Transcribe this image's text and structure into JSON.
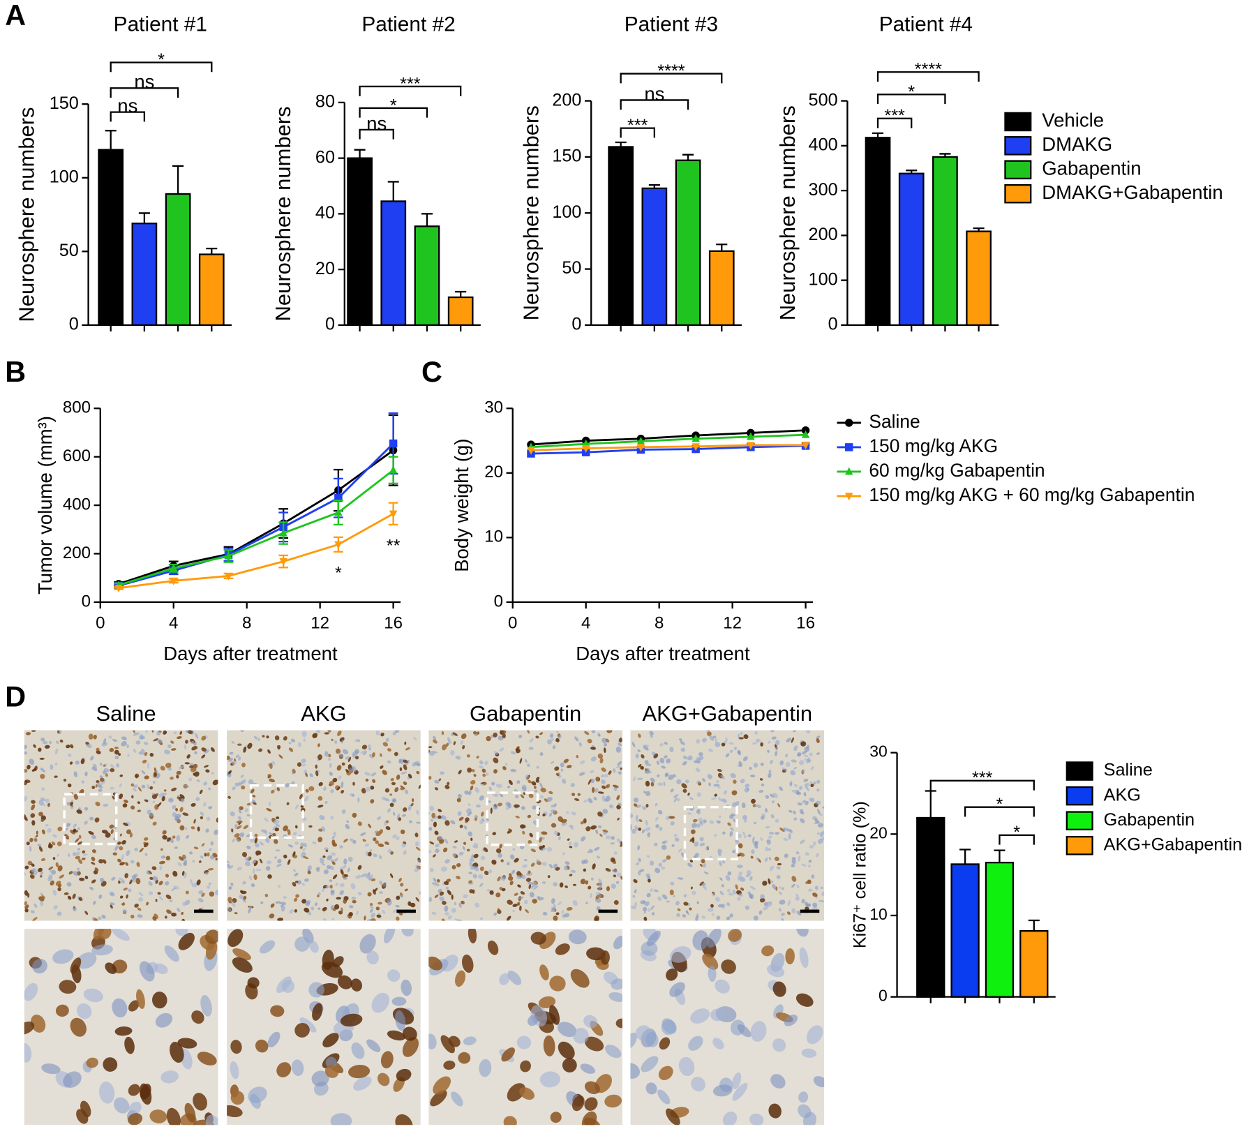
{
  "panels": [
    "A",
    "B",
    "C",
    "D"
  ],
  "micrographs": {
    "labels": [
      "Saline",
      "AKG",
      "Gabapentin",
      "AKG+Gabapentin"
    ]
  },
  "chart_data": [
    {
      "type": "bar",
      "title": "Patient #1",
      "ylabel": "Neurosphere numbers",
      "values": [
        119,
        69,
        89,
        48
      ],
      "errors": [
        13,
        7,
        19,
        4
      ],
      "colors": [
        "#000000",
        "#1f3ff2",
        "#1fc41f",
        "#ff9a0a"
      ],
      "ylim": [
        0,
        150
      ],
      "yticks": [
        0,
        50,
        100,
        150
      ],
      "annotations": [
        "ns",
        "ns",
        "*"
      ]
    },
    {
      "type": "bar",
      "title": "Patient #2",
      "ylabel": "Neurosphere numbers",
      "values": [
        60,
        44.5,
        35.5,
        10
      ],
      "errors": [
        3,
        7,
        4.5,
        2
      ],
      "colors": [
        "#000000",
        "#1f3ff2",
        "#1fc41f",
        "#ff9a0a"
      ],
      "ylim": [
        0,
        80
      ],
      "yticks": [
        0,
        20,
        40,
        60,
        80
      ],
      "annotations": [
        "ns",
        "*",
        "***"
      ]
    },
    {
      "type": "bar",
      "title": "Patient #3",
      "ylabel": "Neurosphere numbers",
      "values": [
        159,
        122,
        147,
        66
      ],
      "errors": [
        4,
        3,
        5,
        6
      ],
      "colors": [
        "#000000",
        "#1f3ff2",
        "#1fc41f",
        "#ff9a0a"
      ],
      "ylim": [
        0,
        200
      ],
      "yticks": [
        0,
        50,
        100,
        150,
        200
      ],
      "annotations": [
        "***",
        "ns",
        "****"
      ]
    },
    {
      "type": "bar",
      "title": "Patient #4",
      "ylabel": "Neurosphere numbers",
      "values": [
        418,
        338,
        375,
        209
      ],
      "errors": [
        10,
        7,
        7,
        7
      ],
      "colors": [
        "#000000",
        "#1f3ff2",
        "#1fc41f",
        "#ff9a0a"
      ],
      "ylim": [
        0,
        500
      ],
      "yticks": [
        0,
        100,
        200,
        300,
        400,
        500
      ],
      "annotations": [
        "***",
        "*",
        "****"
      ],
      "legend": [
        "Vehicle",
        "DMAKG",
        "Gabapentin",
        "DMAKG+Gabapentin"
      ]
    },
    {
      "type": "line",
      "ylabel": "Tumor volume (mm³)",
      "xlabel": "Days after treatment",
      "x": [
        1,
        4,
        7,
        10,
        13,
        16
      ],
      "xlim": [
        0,
        16.4
      ],
      "xticks": [
        0,
        4,
        8,
        12,
        16
      ],
      "ylim": [
        0,
        800
      ],
      "yticks": [
        0,
        200,
        400,
        600,
        800
      ],
      "series": [
        {
          "color": "#000000",
          "marker": "circle",
          "values": [
            75,
            150,
            198,
            325,
            462,
            627
          ],
          "errors": [
            8,
            18,
            30,
            60,
            85,
            145
          ]
        },
        {
          "color": "#1f3ff2",
          "marker": "square",
          "values": [
            68,
            130,
            195,
            310,
            430,
            655
          ],
          "errors": [
            8,
            15,
            25,
            60,
            80,
            125
          ]
        },
        {
          "color": "#1fc41f",
          "marker": "triangle-up",
          "values": [
            70,
            140,
            190,
            285,
            370,
            545
          ],
          "errors": [
            8,
            15,
            25,
            45,
            50,
            55
          ]
        },
        {
          "color": "#ff9a0a",
          "marker": "triangle-down",
          "values": [
            58,
            88,
            108,
            168,
            238,
            365
          ],
          "errors": [
            5,
            8,
            10,
            25,
            30,
            45
          ]
        }
      ],
      "annotations": [
        "*",
        "**"
      ]
    },
    {
      "type": "line",
      "ylabel": "Body weight (g)",
      "xlabel": "Days after treatment",
      "x": [
        1,
        4,
        7,
        10,
        13,
        16
      ],
      "xlim": [
        0,
        16.4
      ],
      "xticks": [
        0,
        4,
        8,
        12,
        16
      ],
      "ylim": [
        0,
        30
      ],
      "yticks": [
        0,
        10,
        20,
        30
      ],
      "series": [
        {
          "name": "Saline",
          "color": "#000000",
          "marker": "circle",
          "values": [
            24.4,
            25.0,
            25.3,
            25.8,
            26.2,
            26.6
          ]
        },
        {
          "name": "150 mg/kg AKG",
          "color": "#1f3ff2",
          "marker": "square",
          "values": [
            23.0,
            23.2,
            23.6,
            23.7,
            24.0,
            24.2
          ]
        },
        {
          "name": "60 mg/kg Gabapentin",
          "color": "#1fc41f",
          "marker": "triangle-up",
          "values": [
            24.0,
            24.5,
            24.9,
            25.3,
            25.6,
            25.9
          ]
        },
        {
          "name": "150 mg/kg AKG + 60 mg/kg Gabapentin",
          "color": "#ff9a0a",
          "marker": "triangle-down",
          "values": [
            23.5,
            23.8,
            24.0,
            24.1,
            24.3,
            24.3
          ]
        }
      ]
    },
    {
      "type": "bar",
      "ylabel": "Ki67⁺ cell ratio (%)",
      "values": [
        22,
        16.3,
        16.5,
        8.1
      ],
      "errors": [
        3.3,
        1.8,
        1.5,
        1.3
      ],
      "colors": [
        "#000000",
        "#0a3cf0",
        "#0ff00f",
        "#ff9a0a"
      ],
      "ylim": [
        0,
        30
      ],
      "yticks": [
        0,
        10,
        20,
        30
      ],
      "annotations": [
        "***",
        "*",
        "*"
      ],
      "legend": [
        "Saline",
        "AKG",
        "Gabapentin",
        "AKG+Gabapentin"
      ]
    }
  ]
}
